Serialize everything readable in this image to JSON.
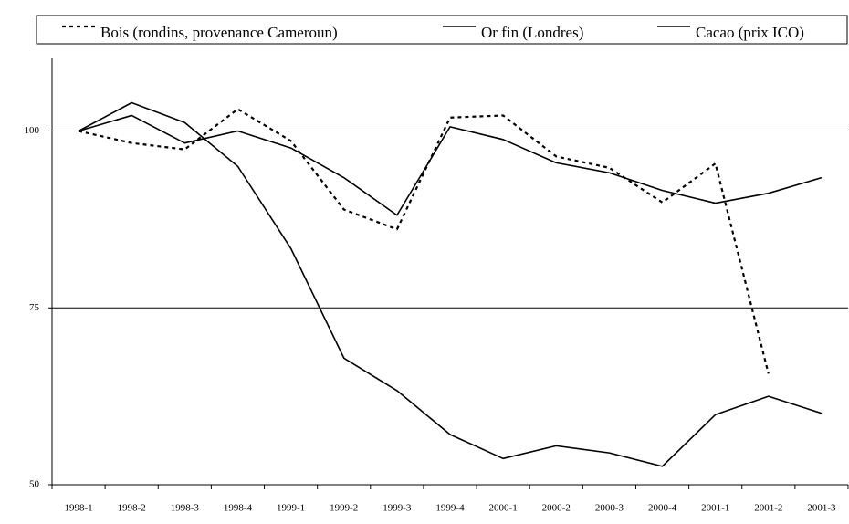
{
  "chart_data": {
    "type": "line",
    "categories": [
      "1998-1",
      "1998-2",
      "1998-3",
      "1998-4",
      "1999-1",
      "1999-2",
      "1999-3",
      "1999-4",
      "2000-1",
      "2000-2",
      "2000-3",
      "2000-4",
      "2001-1",
      "2001-2",
      "2001-3"
    ],
    "series": [
      {
        "name": "Bois (rondins, provenance Cameroun)",
        "color": "#000000",
        "dash": true,
        "values": [
          100,
          98.3,
          97.4,
          103.1,
          98.6,
          88.9,
          86.1,
          101.9,
          102.2,
          96.4,
          94.8,
          89.9,
          95.4,
          65.7,
          null
        ]
      },
      {
        "name": "Or fin (Londres)",
        "color": "#000000",
        "dash": false,
        "values": [
          100,
          102.2,
          98.3,
          100,
          97.6,
          93.4,
          88.1,
          100.6,
          98.8,
          95.5,
          94.1,
          91.6,
          89.8,
          91.2,
          93.4
        ]
      },
      {
        "name": "Cacao (prix ICO)",
        "color": "#000000",
        "dash": false,
        "values": [
          100,
          104.0,
          101.2,
          95.0,
          83.4,
          67.9,
          63.3,
          57.1,
          53.7,
          55.5,
          54.5,
          52.6,
          59.9,
          62.5,
          60.1
        ]
      }
    ],
    "ylim": [
      50,
      110
    ],
    "yticks": [
      50,
      75,
      100
    ],
    "grid": true,
    "legend": "top"
  }
}
